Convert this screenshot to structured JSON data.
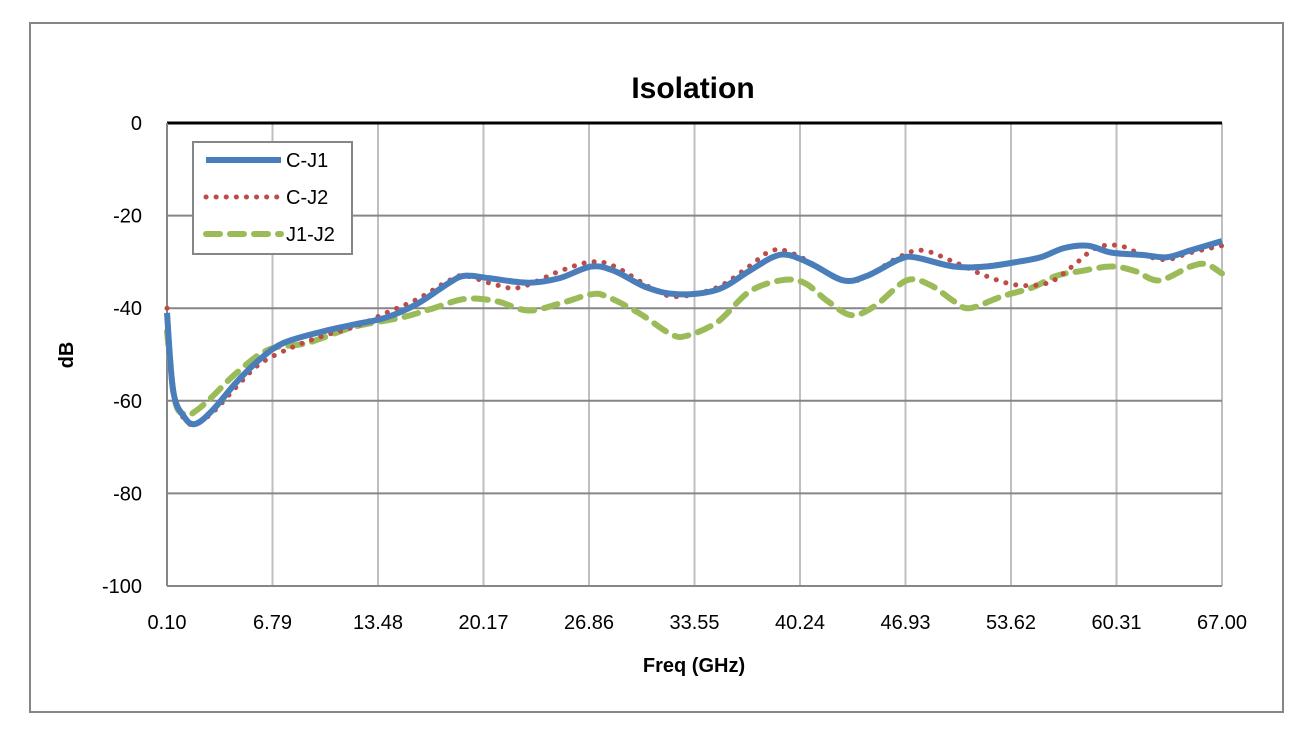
{
  "chart_data": {
    "type": "line",
    "title": "Isolation",
    "xlabel": "Freq (GHz)",
    "ylabel": "dB",
    "xlim": [
      0.1,
      67.0
    ],
    "ylim": [
      -100,
      0
    ],
    "x_tick_labels": [
      "0.10",
      "6.79",
      "13.48",
      "20.17",
      "26.86",
      "33.55",
      "40.24",
      "46.93",
      "53.62",
      "60.31",
      "67.00"
    ],
    "y_tick_labels": [
      "0",
      "-20",
      "-40",
      "-60",
      "-80",
      "-100"
    ],
    "grid": true,
    "legend_position": "top-left",
    "series": [
      {
        "name": "C-J1",
        "color": "#4a7ebb",
        "style": "solid",
        "points": [
          [
            0.1,
            -41
          ],
          [
            0.5,
            -58
          ],
          [
            1.2,
            -63.5
          ],
          [
            1.9,
            -65
          ],
          [
            3,
            -62
          ],
          [
            4.5,
            -56
          ],
          [
            6,
            -51
          ],
          [
            7.5,
            -47.5
          ],
          [
            10,
            -45
          ],
          [
            12,
            -43.5
          ],
          [
            14,
            -42
          ],
          [
            16,
            -39
          ],
          [
            18,
            -34.5
          ],
          [
            19,
            -33
          ],
          [
            20.5,
            -33.5
          ],
          [
            23,
            -34.5
          ],
          [
            25,
            -33.5
          ],
          [
            27,
            -31
          ],
          [
            28.5,
            -32
          ],
          [
            30.5,
            -35.5
          ],
          [
            32.5,
            -37
          ],
          [
            35,
            -36
          ],
          [
            37,
            -32
          ],
          [
            38.5,
            -29
          ],
          [
            39.5,
            -28.5
          ],
          [
            41,
            -30.5
          ],
          [
            43,
            -34
          ],
          [
            44.5,
            -33
          ],
          [
            46.5,
            -29.5
          ],
          [
            47.5,
            -29
          ],
          [
            50,
            -31
          ],
          [
            52,
            -31
          ],
          [
            54,
            -30
          ],
          [
            55.5,
            -29
          ],
          [
            57,
            -27
          ],
          [
            58.5,
            -26.5
          ],
          [
            60,
            -28
          ],
          [
            62,
            -28.5
          ],
          [
            63.5,
            -29
          ],
          [
            65,
            -27.5
          ],
          [
            67,
            -25.5
          ]
        ]
      },
      {
        "name": "C-J2",
        "color": "#be4b48",
        "style": "dotted",
        "points": [
          [
            0.1,
            -40
          ],
          [
            0.5,
            -58
          ],
          [
            1.2,
            -64
          ],
          [
            1.9,
            -65
          ],
          [
            3,
            -62.5
          ],
          [
            4.5,
            -57
          ],
          [
            6,
            -52
          ],
          [
            8,
            -48.5
          ],
          [
            10,
            -46
          ],
          [
            12,
            -44
          ],
          [
            14,
            -41
          ],
          [
            16,
            -38
          ],
          [
            18,
            -34
          ],
          [
            19,
            -33
          ],
          [
            21,
            -35
          ],
          [
            22.5,
            -35.5
          ],
          [
            25,
            -32
          ],
          [
            27,
            -30
          ],
          [
            28.5,
            -31
          ],
          [
            31,
            -36
          ],
          [
            32.5,
            -37.5
          ],
          [
            35,
            -35.5
          ],
          [
            37,
            -31
          ],
          [
            38.5,
            -27.5
          ],
          [
            40,
            -28.5
          ],
          [
            43,
            -34
          ],
          [
            44.5,
            -33
          ],
          [
            46.5,
            -29
          ],
          [
            48,
            -27.5
          ],
          [
            50,
            -30
          ],
          [
            52,
            -33
          ],
          [
            54,
            -35
          ],
          [
            56,
            -34.5
          ],
          [
            57.5,
            -31
          ],
          [
            59,
            -27
          ],
          [
            60.5,
            -26.5
          ],
          [
            62,
            -28.5
          ],
          [
            63.5,
            -29.5
          ],
          [
            65,
            -28
          ],
          [
            67,
            -26.5
          ]
        ]
      },
      {
        "name": "J1-J2",
        "color": "#9bbb59",
        "style": "dashed",
        "points": [
          [
            0.1,
            -45
          ],
          [
            0.6,
            -60
          ],
          [
            1.3,
            -63
          ],
          [
            2,
            -62
          ],
          [
            3,
            -59
          ],
          [
            4.5,
            -54
          ],
          [
            6.5,
            -49
          ],
          [
            9,
            -47.5
          ],
          [
            12,
            -44
          ],
          [
            15,
            -42
          ],
          [
            17,
            -40
          ],
          [
            19,
            -38
          ],
          [
            21,
            -38.5
          ],
          [
            23,
            -40.5
          ],
          [
            25,
            -39
          ],
          [
            27,
            -37
          ],
          [
            28,
            -37.5
          ],
          [
            30,
            -41
          ],
          [
            32,
            -45.5
          ],
          [
            33,
            -46
          ],
          [
            35,
            -43
          ],
          [
            37,
            -36.5
          ],
          [
            39,
            -34
          ],
          [
            40.5,
            -34.5
          ],
          [
            42,
            -38.5
          ],
          [
            43.5,
            -41.5
          ],
          [
            45,
            -39.5
          ],
          [
            47,
            -34
          ],
          [
            48.5,
            -35
          ],
          [
            50,
            -38.5
          ],
          [
            51,
            -40
          ],
          [
            53,
            -37.5
          ],
          [
            55,
            -35.5
          ],
          [
            56.5,
            -33
          ],
          [
            58,
            -32
          ],
          [
            60,
            -31
          ],
          [
            61.5,
            -32
          ],
          [
            63,
            -34
          ],
          [
            65,
            -31
          ],
          [
            66,
            -30.5
          ],
          [
            67,
            -32.5
          ]
        ]
      }
    ]
  }
}
